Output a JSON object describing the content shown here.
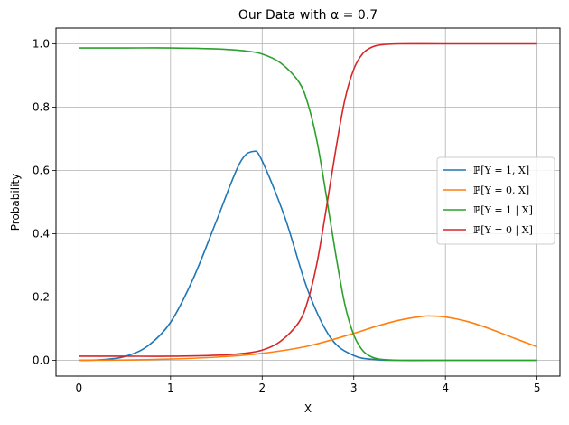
{
  "chart_data": {
    "type": "line",
    "title": "Our Data with α = 0.7",
    "xlabel": "X",
    "ylabel": "Probability",
    "xlim": [
      -0.25,
      5.25
    ],
    "ylim": [
      -0.05,
      1.05
    ],
    "x_ticks": [
      0,
      1,
      2,
      3,
      4,
      5
    ],
    "x_tick_labels": [
      "0",
      "1",
      "2",
      "3",
      "4",
      "5"
    ],
    "y_ticks": [
      0.0,
      0.2,
      0.4,
      0.6,
      0.8,
      1.0
    ],
    "y_tick_labels": [
      "0.0",
      "0.2",
      "0.4",
      "0.6",
      "0.8",
      "1.0"
    ],
    "grid": true,
    "legend_position": "center-right",
    "series": [
      {
        "name": "ℙ[Y = 1, X]",
        "color": "#1f77b4",
        "x": [
          0.0,
          0.25,
          0.5,
          0.75,
          1.0,
          1.25,
          1.5,
          1.75,
          1.9,
          2.0,
          2.25,
          2.5,
          2.75,
          3.0,
          3.25,
          3.5,
          3.75,
          4.0,
          4.5,
          5.0
        ],
        "y": [
          0.0,
          0.002,
          0.012,
          0.045,
          0.12,
          0.26,
          0.44,
          0.62,
          0.66,
          0.63,
          0.45,
          0.22,
          0.07,
          0.015,
          0.002,
          0.0,
          0.0,
          0.0,
          0.0,
          0.0
        ]
      },
      {
        "name": "ℙ[Y = 0, X]",
        "color": "#ff7f0e",
        "x": [
          0.0,
          0.5,
          1.0,
          1.5,
          2.0,
          2.5,
          3.0,
          3.25,
          3.5,
          3.75,
          3.85,
          4.0,
          4.25,
          4.5,
          4.75,
          5.0
        ],
        "y": [
          0.0,
          0.001,
          0.004,
          0.01,
          0.022,
          0.045,
          0.085,
          0.108,
          0.127,
          0.139,
          0.14,
          0.137,
          0.122,
          0.098,
          0.07,
          0.043
        ]
      },
      {
        "name": "ℙ[Y = 1 | X]",
        "color": "#2ca02c",
        "x": [
          0.0,
          0.5,
          1.0,
          1.5,
          1.8,
          2.0,
          2.2,
          2.4,
          2.5,
          2.6,
          2.7,
          2.8,
          2.9,
          3.0,
          3.1,
          3.2,
          3.3,
          3.5,
          4.0,
          5.0
        ],
        "y": [
          0.987,
          0.987,
          0.987,
          0.984,
          0.978,
          0.968,
          0.94,
          0.88,
          0.81,
          0.69,
          0.52,
          0.34,
          0.18,
          0.08,
          0.03,
          0.01,
          0.003,
          0.0,
          0.0,
          0.0
        ]
      },
      {
        "name": "ℙ[Y = 0 | X]",
        "color": "#d62728",
        "x": [
          0.0,
          0.5,
          1.0,
          1.5,
          1.8,
          2.0,
          2.2,
          2.4,
          2.5,
          2.6,
          2.7,
          2.8,
          2.9,
          3.0,
          3.1,
          3.2,
          3.3,
          3.5,
          4.0,
          5.0
        ],
        "y": [
          0.013,
          0.013,
          0.013,
          0.016,
          0.022,
          0.032,
          0.06,
          0.12,
          0.19,
          0.31,
          0.48,
          0.66,
          0.82,
          0.92,
          0.97,
          0.99,
          0.997,
          1.0,
          1.0,
          1.0
        ]
      }
    ]
  }
}
